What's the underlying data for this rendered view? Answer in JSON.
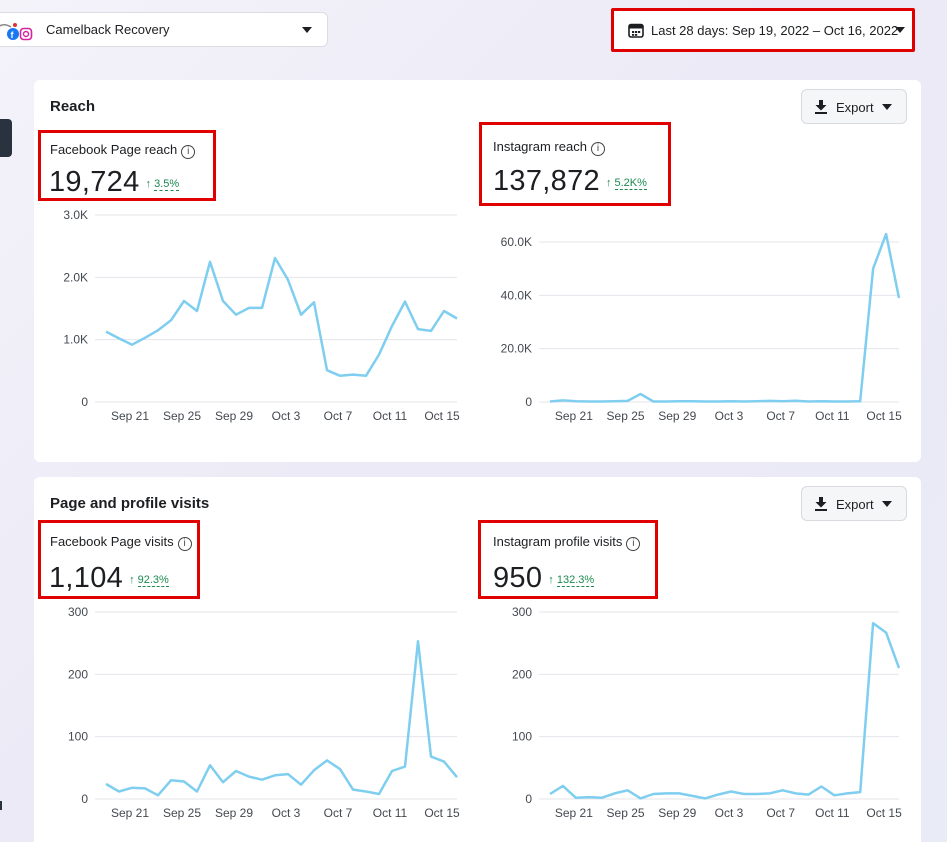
{
  "header": {
    "page_name": "Camelback Recovery",
    "date_range": "Last 28 days: Sep 19, 2022 – Oct 16, 2022"
  },
  "icons": {
    "calendar": "calendar-icon",
    "download": "download-icon",
    "info": "info-icon",
    "up_arrow": "arrow-up-icon"
  },
  "colors": {
    "line": "#7fcef0",
    "highlight_border": "#e00000",
    "positive": "#1b8a4f"
  },
  "x_ticks": [
    "Sep 21",
    "Sep 25",
    "Sep 29",
    "Oct 3",
    "Oct 7",
    "Oct 11",
    "Oct 15"
  ],
  "sections": {
    "reach": {
      "title": "Reach",
      "export_label": "Export",
      "fb": {
        "label": "Facebook Page reach",
        "value": "19,724",
        "arrow": "↑",
        "change": "3.5%"
      },
      "ig": {
        "label": "Instagram reach",
        "value": "137,872",
        "arrow": "↑",
        "change": "5.2K%"
      }
    },
    "visits": {
      "title": "Page and profile visits",
      "export_label": "Export",
      "fb": {
        "label": "Facebook Page visits",
        "value": "1,104",
        "arrow": "↑",
        "change": "92.3%"
      },
      "ig": {
        "label": "Instagram profile visits",
        "value": "950",
        "arrow": "↑",
        "change": "132.3%"
      }
    }
  },
  "chart_data": [
    {
      "type": "line",
      "title": "Facebook Page reach",
      "x": [
        "Sep 19",
        "Sep 20",
        "Sep 21",
        "Sep 22",
        "Sep 23",
        "Sep 24",
        "Sep 25",
        "Sep 26",
        "Sep 27",
        "Sep 28",
        "Sep 29",
        "Sep 30",
        "Oct 1",
        "Oct 2",
        "Oct 3",
        "Oct 4",
        "Oct 5",
        "Oct 6",
        "Oct 7",
        "Oct 8",
        "Oct 9",
        "Oct 10",
        "Oct 11",
        "Oct 12",
        "Oct 13",
        "Oct 14",
        "Oct 15",
        "Oct 16"
      ],
      "y": [
        1130,
        1020,
        920,
        1030,
        1150,
        1310,
        1620,
        1460,
        2250,
        1620,
        1400,
        1510,
        1510,
        2310,
        1960,
        1400,
        1600,
        510,
        420,
        440,
        420,
        760,
        1220,
        1610,
        1170,
        1140,
        1460,
        1340
      ],
      "y_ticks": [
        "0",
        "1.0K",
        "2.0K",
        "3.0K"
      ],
      "ylim": [
        0,
        3000
      ]
    },
    {
      "type": "line",
      "title": "Instagram reach",
      "x": [
        "Sep 19",
        "Sep 20",
        "Sep 21",
        "Sep 22",
        "Sep 23",
        "Sep 24",
        "Sep 25",
        "Sep 26",
        "Sep 27",
        "Sep 28",
        "Sep 29",
        "Sep 30",
        "Oct 1",
        "Oct 2",
        "Oct 3",
        "Oct 4",
        "Oct 5",
        "Oct 6",
        "Oct 7",
        "Oct 8",
        "Oct 9",
        "Oct 10",
        "Oct 11",
        "Oct 12",
        "Oct 13",
        "Oct 14",
        "Oct 15",
        "Oct 16"
      ],
      "y": [
        200,
        600,
        300,
        200,
        200,
        300,
        400,
        3000,
        200,
        200,
        300,
        300,
        200,
        200,
        300,
        200,
        300,
        400,
        300,
        500,
        200,
        300,
        200,
        200,
        300,
        50000,
        63000,
        39000
      ],
      "y_ticks": [
        "0",
        "20.0K",
        "40.0K",
        "60.0K"
      ],
      "ylim": [
        0,
        70000
      ]
    },
    {
      "type": "line",
      "title": "Facebook Page visits",
      "x": [
        "Sep 19",
        "Sep 20",
        "Sep 21",
        "Sep 22",
        "Sep 23",
        "Sep 24",
        "Sep 25",
        "Sep 26",
        "Sep 27",
        "Sep 28",
        "Sep 29",
        "Sep 30",
        "Oct 1",
        "Oct 2",
        "Oct 3",
        "Oct 4",
        "Oct 5",
        "Oct 6",
        "Oct 7",
        "Oct 8",
        "Oct 9",
        "Oct 10",
        "Oct 11",
        "Oct 12",
        "Oct 13",
        "Oct 14",
        "Oct 15",
        "Oct 16"
      ],
      "y": [
        24,
        12,
        18,
        17,
        6,
        30,
        28,
        12,
        54,
        27,
        45,
        36,
        31,
        38,
        40,
        23,
        46,
        62,
        48,
        15,
        12,
        8,
        45,
        52,
        253,
        68,
        60,
        35
      ],
      "y_ticks": [
        "0",
        "100",
        "200",
        "300"
      ],
      "ylim": [
        0,
        300
      ]
    },
    {
      "type": "line",
      "title": "Instagram profile visits",
      "x": [
        "Sep 19",
        "Sep 20",
        "Sep 21",
        "Sep 22",
        "Sep 23",
        "Sep 24",
        "Sep 25",
        "Sep 26",
        "Sep 27",
        "Sep 28",
        "Sep 29",
        "Sep 30",
        "Oct 1",
        "Oct 2",
        "Oct 3",
        "Oct 4",
        "Oct 5",
        "Oct 6",
        "Oct 7",
        "Oct 8",
        "Oct 9",
        "Oct 10",
        "Oct 11",
        "Oct 12",
        "Oct 13",
        "Oct 14",
        "Oct 15",
        "Oct 16"
      ],
      "y": [
        8,
        21,
        2,
        3,
        2,
        9,
        14,
        1,
        8,
        9,
        9,
        5,
        1,
        7,
        12,
        8,
        8,
        9,
        14,
        9,
        7,
        20,
        6,
        9,
        11,
        282,
        267,
        210
      ],
      "y_ticks": [
        "0",
        "100",
        "200",
        "300"
      ],
      "ylim": [
        0,
        300
      ]
    }
  ]
}
